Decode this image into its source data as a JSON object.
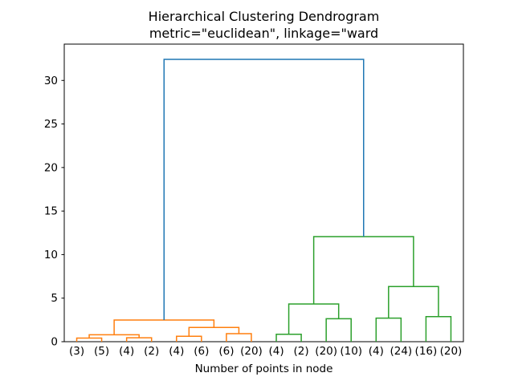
{
  "chart_data": {
    "type": "dendrogram",
    "title": "Hierarchical Clustering Dendrogram",
    "subtitle": "metric=\"euclidean\", linkage=\"ward",
    "xlabel": "Number of points in node",
    "leaf_labels": [
      "(3)",
      "(5)",
      "(4)",
      "(2)",
      "(4)",
      "(6)",
      "(6)",
      "(20)",
      "(4)",
      "(2)",
      "(20)",
      "(10)",
      "(4)",
      "(24)",
      "(16)",
      "(20)"
    ],
    "yticks": [
      0,
      5,
      10,
      15,
      20,
      25,
      30
    ],
    "ylim": [
      0,
      34.17
    ],
    "grid": false,
    "legend": "none",
    "colors": {
      "cluster_left": "#ff7f0e",
      "cluster_right": "#2ca02c",
      "above_threshold": "#1f77b4",
      "spine": "#000000"
    },
    "links": [
      {
        "id": "L0",
        "left": "leaf0",
        "right": "leaf1",
        "height": 0.42,
        "color": "#ff7f0e"
      },
      {
        "id": "L1",
        "left": "leaf2",
        "right": "leaf3",
        "height": 0.45,
        "color": "#ff7f0e"
      },
      {
        "id": "L2",
        "left": "L0",
        "right": "L1",
        "height": 0.8,
        "color": "#ff7f0e"
      },
      {
        "id": "L3",
        "left": "leaf4",
        "right": "leaf5",
        "height": 0.62,
        "color": "#ff7f0e"
      },
      {
        "id": "L4",
        "left": "leaf6",
        "right": "leaf7",
        "height": 0.92,
        "color": "#ff7f0e"
      },
      {
        "id": "L5",
        "left": "L3",
        "right": "L4",
        "height": 1.63,
        "color": "#ff7f0e"
      },
      {
        "id": "L6",
        "left": "L2",
        "right": "L5",
        "height": 2.49,
        "color": "#ff7f0e"
      },
      {
        "id": "L7",
        "left": "leaf8",
        "right": "leaf9",
        "height": 0.85,
        "color": "#2ca02c"
      },
      {
        "id": "L8",
        "left": "leaf10",
        "right": "leaf11",
        "height": 2.64,
        "color": "#2ca02c"
      },
      {
        "id": "L9",
        "left": "L7",
        "right": "L8",
        "height": 4.33,
        "color": "#2ca02c"
      },
      {
        "id": "L10",
        "left": "leaf12",
        "right": "leaf13",
        "height": 2.7,
        "color": "#2ca02c"
      },
      {
        "id": "L11",
        "left": "leaf14",
        "right": "leaf15",
        "height": 2.88,
        "color": "#2ca02c"
      },
      {
        "id": "L12",
        "left": "L10",
        "right": "L11",
        "height": 6.33,
        "color": "#2ca02c"
      },
      {
        "id": "L13",
        "left": "L9",
        "right": "L12",
        "height": 12.06,
        "color": "#2ca02c"
      },
      {
        "id": "L14",
        "left": "L6",
        "right": "L13",
        "height": 32.42,
        "color": "#1f77b4"
      }
    ]
  }
}
